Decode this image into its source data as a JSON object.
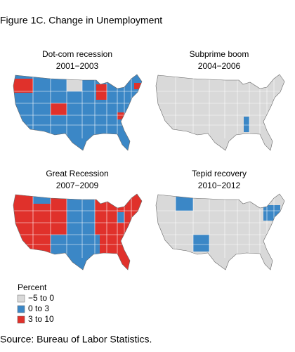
{
  "title": "Figure 1C. Change in Unemployment",
  "panels": [
    {
      "title": "Dot-com recession",
      "period": "2001−2003"
    },
    {
      "title": "Subprime boom",
      "period": "2004−2006"
    },
    {
      "title": "Great Recession",
      "period": "2007−2009"
    },
    {
      "title": "Tepid recovery",
      "period": "2010−2012"
    }
  ],
  "legend": {
    "title": "Percent",
    "items": [
      {
        "label": "−5 to 0",
        "color": "#d9d9d9"
      },
      {
        "label": "0 to 3",
        "color": "#3b87c6"
      },
      {
        "label": "3 to 10",
        "color": "#e0312b"
      }
    ]
  },
  "source": "Source: Bureau of Labor Statistics."
}
